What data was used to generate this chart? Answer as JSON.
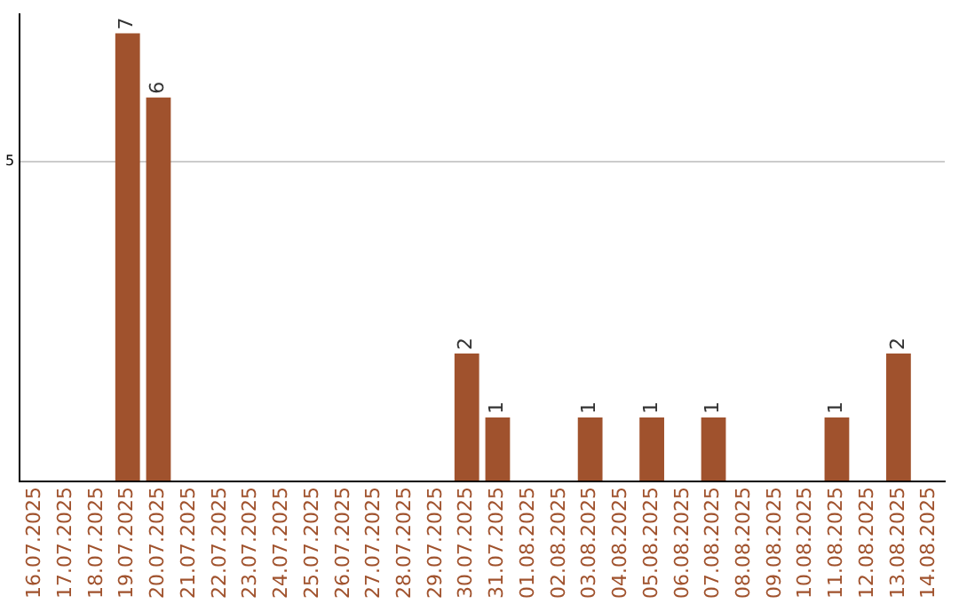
{
  "chart_data": {
    "type": "bar",
    "categories": [
      "16.07.2025",
      "17.07.2025",
      "18.07.2025",
      "19.07.2025",
      "20.07.2025",
      "21.07.2025",
      "22.07.2025",
      "23.07.2025",
      "24.07.2025",
      "25.07.2025",
      "26.07.2025",
      "27.07.2025",
      "28.07.2025",
      "29.07.2025",
      "30.07.2025",
      "31.07.2025",
      "01.08.2025",
      "02.08.2025",
      "03.08.2025",
      "04.08.2025",
      "05.08.2025",
      "06.08.2025",
      "07.08.2025",
      "08.08.2025",
      "09.08.2025",
      "10.08.2025",
      "11.08.2025",
      "12.08.2025",
      "13.08.2025",
      "14.08.2025"
    ],
    "values": [
      0,
      0,
      0,
      7,
      6,
      0,
      0,
      0,
      0,
      0,
      0,
      0,
      0,
      0,
      2,
      1,
      0,
      0,
      1,
      0,
      1,
      0,
      1,
      0,
      0,
      0,
      1,
      0,
      2,
      0
    ],
    "value_labels": [
      null,
      null,
      null,
      "7",
      "6",
      null,
      null,
      null,
      null,
      null,
      null,
      null,
      null,
      null,
      "2",
      "1",
      null,
      null,
      "1",
      null,
      "1",
      null,
      "1",
      null,
      null,
      null,
      "1",
      null,
      "2",
      null
    ],
    "color": "#a0522d",
    "ylim": [
      0,
      7.3
    ],
    "yticks": [
      {
        "value": 0,
        "label": null
      },
      5
    ],
    "grid": "y",
    "legend": false
  }
}
